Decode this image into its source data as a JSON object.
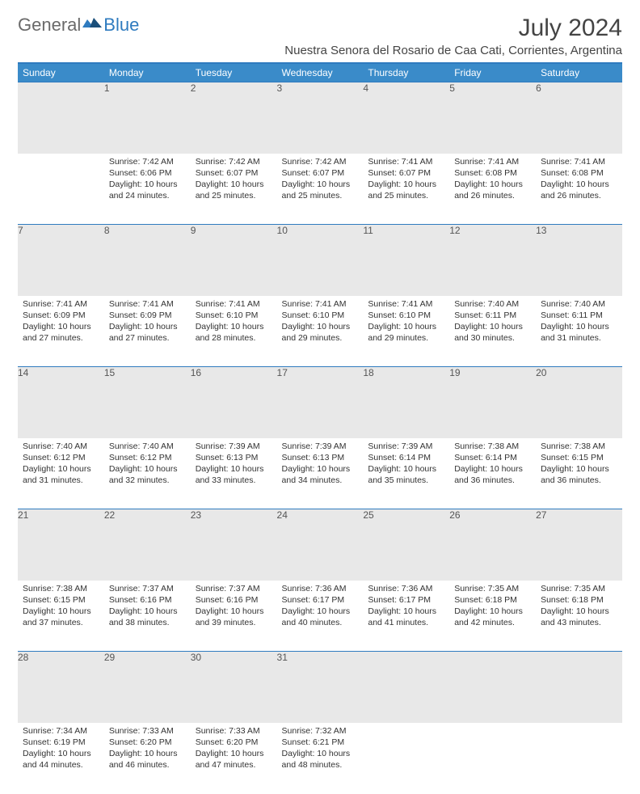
{
  "brand": {
    "general": "General",
    "blue": "Blue"
  },
  "title": "July 2024",
  "location": "Nuestra Senora del Rosario de Caa Cati, Corrientes, Argentina",
  "colors": {
    "header_bg": "#3a8bc9",
    "header_border": "#2f7bbf",
    "daynum_bg": "#e8e8e8",
    "text": "#333333",
    "logo_blue": "#2f7bbf",
    "logo_gray": "#6a6a6a"
  },
  "weekdays": [
    "Sunday",
    "Monday",
    "Tuesday",
    "Wednesday",
    "Thursday",
    "Friday",
    "Saturday"
  ],
  "weeks": [
    {
      "nums": [
        "",
        "1",
        "2",
        "3",
        "4",
        "5",
        "6"
      ],
      "cells": [
        null,
        {
          "sunrise": "Sunrise: 7:42 AM",
          "sunset": "Sunset: 6:06 PM",
          "dl1": "Daylight: 10 hours",
          "dl2": "and 24 minutes."
        },
        {
          "sunrise": "Sunrise: 7:42 AM",
          "sunset": "Sunset: 6:07 PM",
          "dl1": "Daylight: 10 hours",
          "dl2": "and 25 minutes."
        },
        {
          "sunrise": "Sunrise: 7:42 AM",
          "sunset": "Sunset: 6:07 PM",
          "dl1": "Daylight: 10 hours",
          "dl2": "and 25 minutes."
        },
        {
          "sunrise": "Sunrise: 7:41 AM",
          "sunset": "Sunset: 6:07 PM",
          "dl1": "Daylight: 10 hours",
          "dl2": "and 25 minutes."
        },
        {
          "sunrise": "Sunrise: 7:41 AM",
          "sunset": "Sunset: 6:08 PM",
          "dl1": "Daylight: 10 hours",
          "dl2": "and 26 minutes."
        },
        {
          "sunrise": "Sunrise: 7:41 AM",
          "sunset": "Sunset: 6:08 PM",
          "dl1": "Daylight: 10 hours",
          "dl2": "and 26 minutes."
        }
      ]
    },
    {
      "nums": [
        "7",
        "8",
        "9",
        "10",
        "11",
        "12",
        "13"
      ],
      "cells": [
        {
          "sunrise": "Sunrise: 7:41 AM",
          "sunset": "Sunset: 6:09 PM",
          "dl1": "Daylight: 10 hours",
          "dl2": "and 27 minutes."
        },
        {
          "sunrise": "Sunrise: 7:41 AM",
          "sunset": "Sunset: 6:09 PM",
          "dl1": "Daylight: 10 hours",
          "dl2": "and 27 minutes."
        },
        {
          "sunrise": "Sunrise: 7:41 AM",
          "sunset": "Sunset: 6:10 PM",
          "dl1": "Daylight: 10 hours",
          "dl2": "and 28 minutes."
        },
        {
          "sunrise": "Sunrise: 7:41 AM",
          "sunset": "Sunset: 6:10 PM",
          "dl1": "Daylight: 10 hours",
          "dl2": "and 29 minutes."
        },
        {
          "sunrise": "Sunrise: 7:41 AM",
          "sunset": "Sunset: 6:10 PM",
          "dl1": "Daylight: 10 hours",
          "dl2": "and 29 minutes."
        },
        {
          "sunrise": "Sunrise: 7:40 AM",
          "sunset": "Sunset: 6:11 PM",
          "dl1": "Daylight: 10 hours",
          "dl2": "and 30 minutes."
        },
        {
          "sunrise": "Sunrise: 7:40 AM",
          "sunset": "Sunset: 6:11 PM",
          "dl1": "Daylight: 10 hours",
          "dl2": "and 31 minutes."
        }
      ]
    },
    {
      "nums": [
        "14",
        "15",
        "16",
        "17",
        "18",
        "19",
        "20"
      ],
      "cells": [
        {
          "sunrise": "Sunrise: 7:40 AM",
          "sunset": "Sunset: 6:12 PM",
          "dl1": "Daylight: 10 hours",
          "dl2": "and 31 minutes."
        },
        {
          "sunrise": "Sunrise: 7:40 AM",
          "sunset": "Sunset: 6:12 PM",
          "dl1": "Daylight: 10 hours",
          "dl2": "and 32 minutes."
        },
        {
          "sunrise": "Sunrise: 7:39 AM",
          "sunset": "Sunset: 6:13 PM",
          "dl1": "Daylight: 10 hours",
          "dl2": "and 33 minutes."
        },
        {
          "sunrise": "Sunrise: 7:39 AM",
          "sunset": "Sunset: 6:13 PM",
          "dl1": "Daylight: 10 hours",
          "dl2": "and 34 minutes."
        },
        {
          "sunrise": "Sunrise: 7:39 AM",
          "sunset": "Sunset: 6:14 PM",
          "dl1": "Daylight: 10 hours",
          "dl2": "and 35 minutes."
        },
        {
          "sunrise": "Sunrise: 7:38 AM",
          "sunset": "Sunset: 6:14 PM",
          "dl1": "Daylight: 10 hours",
          "dl2": "and 36 minutes."
        },
        {
          "sunrise": "Sunrise: 7:38 AM",
          "sunset": "Sunset: 6:15 PM",
          "dl1": "Daylight: 10 hours",
          "dl2": "and 36 minutes."
        }
      ]
    },
    {
      "nums": [
        "21",
        "22",
        "23",
        "24",
        "25",
        "26",
        "27"
      ],
      "cells": [
        {
          "sunrise": "Sunrise: 7:38 AM",
          "sunset": "Sunset: 6:15 PM",
          "dl1": "Daylight: 10 hours",
          "dl2": "and 37 minutes."
        },
        {
          "sunrise": "Sunrise: 7:37 AM",
          "sunset": "Sunset: 6:16 PM",
          "dl1": "Daylight: 10 hours",
          "dl2": "and 38 minutes."
        },
        {
          "sunrise": "Sunrise: 7:37 AM",
          "sunset": "Sunset: 6:16 PM",
          "dl1": "Daylight: 10 hours",
          "dl2": "and 39 minutes."
        },
        {
          "sunrise": "Sunrise: 7:36 AM",
          "sunset": "Sunset: 6:17 PM",
          "dl1": "Daylight: 10 hours",
          "dl2": "and 40 minutes."
        },
        {
          "sunrise": "Sunrise: 7:36 AM",
          "sunset": "Sunset: 6:17 PM",
          "dl1": "Daylight: 10 hours",
          "dl2": "and 41 minutes."
        },
        {
          "sunrise": "Sunrise: 7:35 AM",
          "sunset": "Sunset: 6:18 PM",
          "dl1": "Daylight: 10 hours",
          "dl2": "and 42 minutes."
        },
        {
          "sunrise": "Sunrise: 7:35 AM",
          "sunset": "Sunset: 6:18 PM",
          "dl1": "Daylight: 10 hours",
          "dl2": "and 43 minutes."
        }
      ]
    },
    {
      "nums": [
        "28",
        "29",
        "30",
        "31",
        "",
        "",
        ""
      ],
      "cells": [
        {
          "sunrise": "Sunrise: 7:34 AM",
          "sunset": "Sunset: 6:19 PM",
          "dl1": "Daylight: 10 hours",
          "dl2": "and 44 minutes."
        },
        {
          "sunrise": "Sunrise: 7:33 AM",
          "sunset": "Sunset: 6:20 PM",
          "dl1": "Daylight: 10 hours",
          "dl2": "and 46 minutes."
        },
        {
          "sunrise": "Sunrise: 7:33 AM",
          "sunset": "Sunset: 6:20 PM",
          "dl1": "Daylight: 10 hours",
          "dl2": "and 47 minutes."
        },
        {
          "sunrise": "Sunrise: 7:32 AM",
          "sunset": "Sunset: 6:21 PM",
          "dl1": "Daylight: 10 hours",
          "dl2": "and 48 minutes."
        },
        null,
        null,
        null
      ]
    }
  ]
}
